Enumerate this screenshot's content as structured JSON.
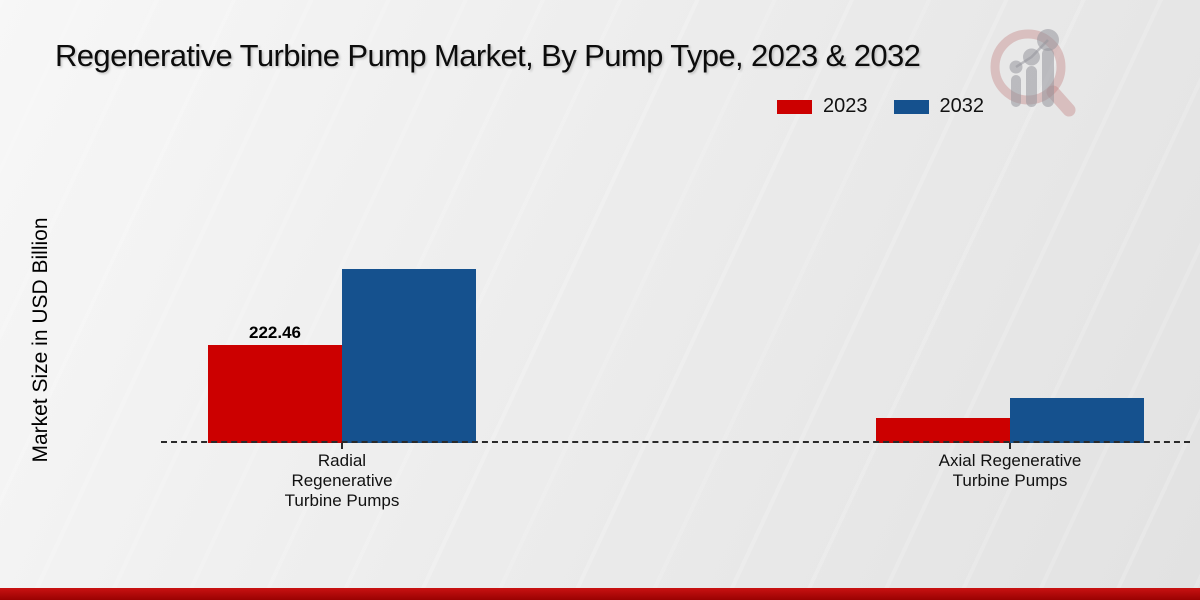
{
  "title": "Regenerative Turbine Pump Market, By Pump Type, 2023 & 2032",
  "ylabel": "Market Size in USD Billion",
  "legend": {
    "position": "top-right",
    "items": [
      "2023",
      "2032"
    ]
  },
  "colors": {
    "series_2023": "#cc0000",
    "series_2032": "#15518e",
    "background": "#ececec",
    "footer_bar": "#b00a0a",
    "baseline": "#2a2a2a"
  },
  "logo": {
    "name": "market-research-future-logo"
  },
  "chart_data": {
    "type": "bar",
    "title": "Regenerative Turbine Pump Market, By Pump Type, 2023 & 2032",
    "xlabel": "",
    "ylabel": "Market Size in USD Billion",
    "categories": [
      "Radial Regenerative Turbine Pumps",
      "Axial Regenerative Turbine Pumps"
    ],
    "series": [
      {
        "name": "2023",
        "color": "#cc0000",
        "values": [
          222.46,
          56
        ]
      },
      {
        "name": "2032",
        "color": "#15518e",
        "values": [
          395,
          102
        ]
      }
    ],
    "annotations": [
      {
        "series_index": 0,
        "category_index": 0,
        "text": "222.46"
      }
    ],
    "ylim": [
      0,
      460
    ],
    "grid": false,
    "baseline": {
      "style": "dashed",
      "color": "#222222"
    },
    "legend_position": "top-right"
  }
}
